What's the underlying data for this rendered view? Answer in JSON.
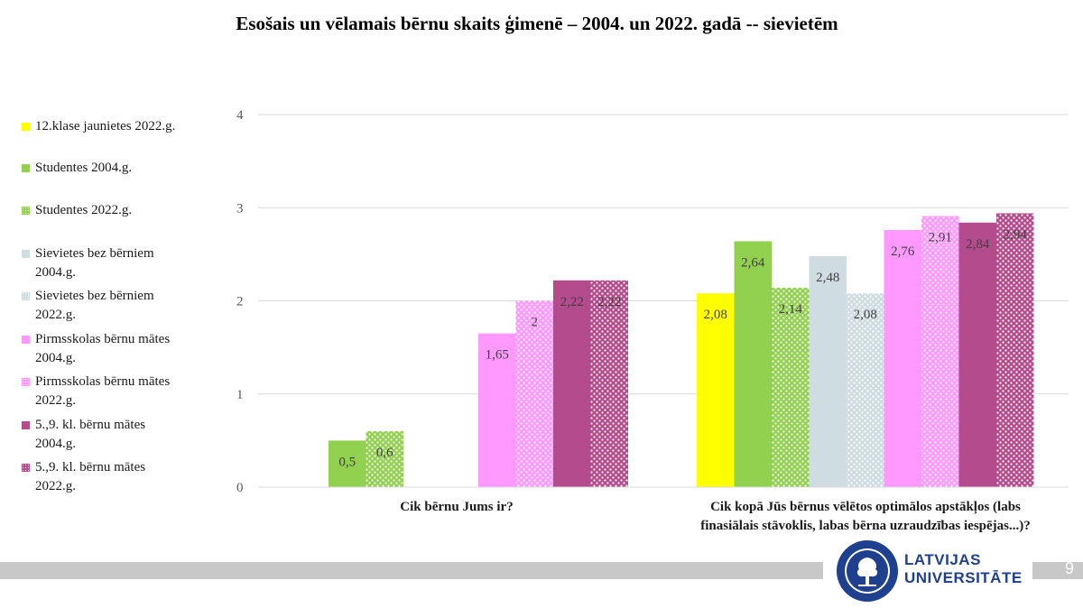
{
  "chart_data": {
    "type": "bar",
    "title": "Esošais un vēlamais bērnu skaits ģimenē – 2004. un 2022. gadā -- sievietēm",
    "categories": [
      "Cik bērnu Jums ir?",
      "Cik kopā Jūs bērnus vēlētos optimālos apstākļos (labs finasiālais stāvoklis, labas bērna uzraudzības iespējas...)?"
    ],
    "category_lines": [
      [
        "Cik bērnu Jums ir?"
      ],
      [
        "Cik kopā Jūs bērnus vēlētos optimālos apstākļos (labs",
        "finasiālais stāvoklis, labas bērna uzraudzības iespējas...)?"
      ]
    ],
    "ylim": [
      0,
      4
    ],
    "yticks": [
      "0",
      "1",
      "2",
      "3",
      "4"
    ],
    "grid": true,
    "legend_position": "left",
    "series": [
      {
        "name": "12.klase jaunietes 2022.g.",
        "lines": [
          "12.klase jaunietes 2022.g."
        ],
        "color": "#ffff00",
        "pattern": "solid",
        "values": [
          null,
          2.08
        ],
        "labels": [
          "",
          "2,08"
        ]
      },
      {
        "name": "Studentes 2004.g.",
        "lines": [
          "Studentes 2004.g."
        ],
        "color": "#92d050",
        "pattern": "solid",
        "values": [
          0.5,
          2.64
        ],
        "labels": [
          "0,5",
          "2,64"
        ]
      },
      {
        "name": "Studentes 2022.g.",
        "lines": [
          "Studentes 2022.g."
        ],
        "color": "#92d050",
        "pattern": "dots",
        "values": [
          0.6,
          2.14
        ],
        "labels": [
          "0,6",
          "2,14"
        ]
      },
      {
        "name": "Sievietes bez bērniem 2004.g.",
        "lines": [
          "Sievietes bez bērniem",
          "2004.g."
        ],
        "color": "#cfdde3",
        "pattern": "solid",
        "values": [
          null,
          2.48
        ],
        "labels": [
          "",
          "2,48"
        ]
      },
      {
        "name": "Sievietes bez bērniem 2022.g.",
        "lines": [
          "Sievietes bez bērniem",
          "2022.g."
        ],
        "color": "#cfdde3",
        "pattern": "dots",
        "values": [
          null,
          2.08
        ],
        "labels": [
          "",
          "2,08"
        ]
      },
      {
        "name": "Pirmsskolas bērnu mātes 2004.g.",
        "lines": [
          "Pirmsskolas bērnu mātes",
          "2004.g."
        ],
        "color": "#ff99ff",
        "pattern": "solid",
        "values": [
          1.65,
          2.76
        ],
        "labels": [
          "1,65",
          "2,76"
        ]
      },
      {
        "name": "Pirmsskolas bērnu mātes 2022.g.",
        "lines": [
          "Pirmsskolas bērnu mātes",
          "2022.g."
        ],
        "color": "#ff99ff",
        "pattern": "dots",
        "values": [
          2,
          2.91
        ],
        "labels": [
          "2",
          "2,91"
        ]
      },
      {
        "name": "5.,9. kl. bērnu mātes 2004.g.",
        "lines": [
          "5.,9. kl. bērnu mātes",
          "2004.g."
        ],
        "color": "#b34b8c",
        "pattern": "solid",
        "values": [
          2.22,
          2.84
        ],
        "labels": [
          "2,22",
          "2,84"
        ]
      },
      {
        "name": "5.,9. kl. bērnu mātes 2022.g.",
        "lines": [
          "5.,9. kl. bērnu mātes",
          "2022.g."
        ],
        "color": "#b34b8c",
        "pattern": "dots",
        "values": [
          2.22,
          2.94
        ],
        "labels": [
          "2,22",
          "2,94"
        ]
      }
    ]
  },
  "footer": {
    "page_number": "9",
    "logo_text_line1": "LATVIJAS",
    "logo_text_line2": "UNIVERSITĀTE",
    "logo_color": "#1f3f8f"
  }
}
